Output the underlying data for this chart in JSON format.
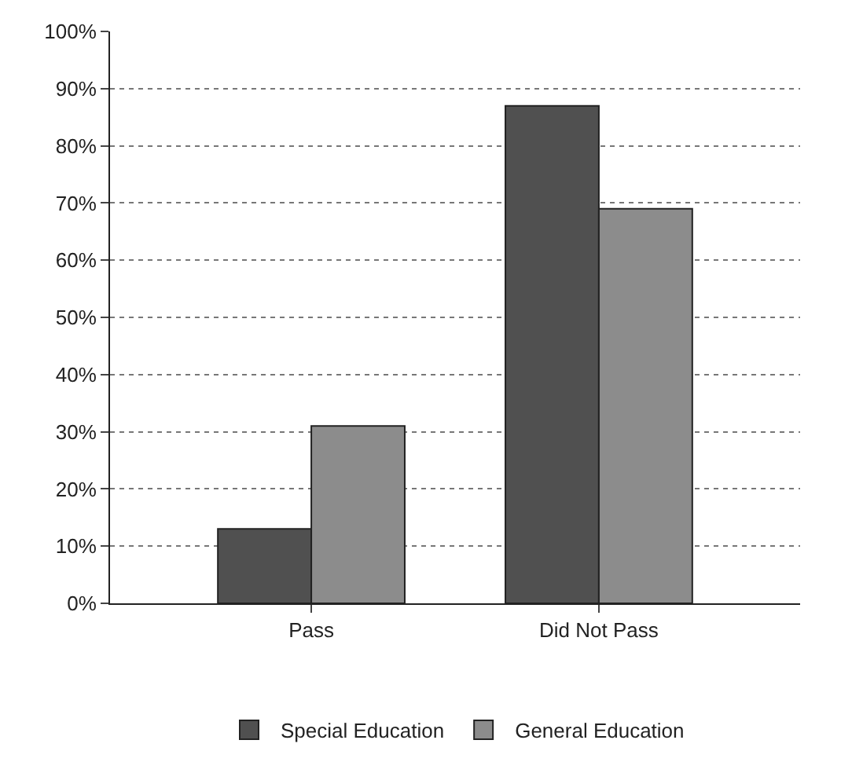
{
  "chart_data": {
    "type": "bar",
    "categories": [
      "Pass",
      "Did Not Pass"
    ],
    "series": [
      {
        "name": "Special Education",
        "color": "#505050",
        "values": [
          13,
          87
        ]
      },
      {
        "name": "General Education",
        "color": "#8c8c8c",
        "values": [
          31,
          69
        ]
      }
    ],
    "ylim": [
      0,
      100
    ],
    "yticks": [
      {
        "value": 0,
        "label": "0%"
      },
      {
        "value": 10,
        "label": "10%"
      },
      {
        "value": 20,
        "label": "20%"
      },
      {
        "value": 30,
        "label": "30%"
      },
      {
        "value": 40,
        "label": "40%"
      },
      {
        "value": 50,
        "label": "50%"
      },
      {
        "value": 60,
        "label": "60%"
      },
      {
        "value": 70,
        "label": "70%"
      },
      {
        "value": 80,
        "label": "80%"
      },
      {
        "value": 90,
        "label": "90%"
      },
      {
        "value": 100,
        "label": "100%"
      }
    ],
    "grid": "y",
    "legend": "bottom"
  }
}
